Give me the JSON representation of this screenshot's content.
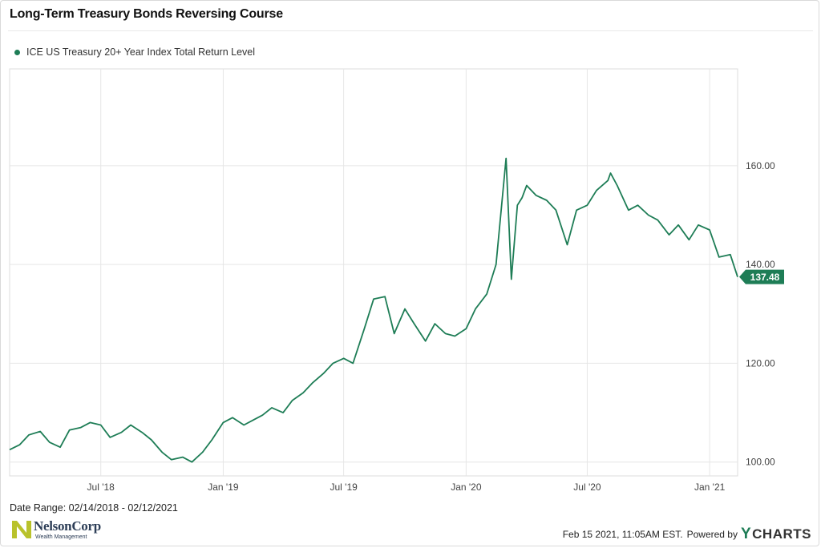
{
  "title": "Long-Term Treasury Bonds Reversing Course",
  "legend_label": "ICE US Treasury 20+ Year Index Total Return Level",
  "date_range": "Date Range: 02/14/2018 - 02/12/2021",
  "footer": {
    "timestamp": "Feb 15 2021, 11:05AM EST.",
    "powered_by": "Powered by",
    "brand_y": "Y",
    "brand_rest": "CHARTS"
  },
  "logo": {
    "name": "NelsonCorp",
    "sub": "Wealth Management",
    "mark_letter": "N"
  },
  "colors": {
    "line": "#1e7d56",
    "grid": "#e6e6e6",
    "badge": "#1e7d56",
    "logo_mark": "#b9c22b"
  },
  "chart_data": {
    "type": "line",
    "title": "Long-Term Treasury Bonds Reversing Course",
    "series": [
      {
        "name": "ICE US Treasury 20+ Year Index Total Return Level",
        "x": [
          "2018-02-14",
          "2018-03-01",
          "2018-03-15",
          "2018-04-01",
          "2018-04-15",
          "2018-05-01",
          "2018-05-15",
          "2018-06-01",
          "2018-06-15",
          "2018-07-01",
          "2018-07-15",
          "2018-08-01",
          "2018-08-15",
          "2018-09-01",
          "2018-09-15",
          "2018-10-01",
          "2018-10-15",
          "2018-11-01",
          "2018-11-15",
          "2018-12-01",
          "2018-12-15",
          "2019-01-01",
          "2019-01-15",
          "2019-02-01",
          "2019-02-15",
          "2019-03-01",
          "2019-03-15",
          "2019-04-01",
          "2019-04-15",
          "2019-05-01",
          "2019-05-15",
          "2019-06-01",
          "2019-06-15",
          "2019-07-01",
          "2019-07-15",
          "2019-08-01",
          "2019-08-15",
          "2019-09-01",
          "2019-09-15",
          "2019-10-01",
          "2019-10-15",
          "2019-11-01",
          "2019-11-15",
          "2019-12-01",
          "2019-12-15",
          "2020-01-01",
          "2020-01-15",
          "2020-02-01",
          "2020-02-15",
          "2020-03-01",
          "2020-03-09",
          "2020-03-18",
          "2020-03-25",
          "2020-04-01",
          "2020-04-15",
          "2020-05-01",
          "2020-05-15",
          "2020-06-01",
          "2020-06-15",
          "2020-07-01",
          "2020-07-15",
          "2020-08-01",
          "2020-08-05",
          "2020-08-15",
          "2020-09-01",
          "2020-09-15",
          "2020-10-01",
          "2020-10-15",
          "2020-11-01",
          "2020-11-15",
          "2020-12-01",
          "2020-12-15",
          "2021-01-01",
          "2021-01-15",
          "2021-02-01",
          "2021-02-12"
        ],
        "values": [
          102.5,
          103.5,
          105.5,
          106.2,
          104.0,
          103.0,
          106.5,
          107.0,
          108.0,
          107.5,
          105.0,
          106.0,
          107.5,
          106.0,
          104.5,
          102.0,
          100.5,
          101.0,
          100.0,
          102.0,
          104.5,
          108.0,
          109.0,
          107.5,
          108.5,
          109.5,
          111.0,
          110.0,
          112.5,
          114.0,
          116.0,
          118.0,
          120.0,
          121.0,
          120.0,
          127.0,
          133.0,
          133.5,
          126.0,
          131.0,
          128.0,
          124.5,
          128.0,
          126.0,
          125.5,
          127.0,
          131.0,
          134.0,
          140.0,
          161.5,
          137.0,
          152.0,
          153.5,
          156.0,
          154.0,
          153.0,
          151.0,
          144.0,
          151.0,
          152.0,
          155.0,
          157.0,
          158.5,
          156.0,
          151.0,
          152.0,
          150.0,
          149.0,
          146.0,
          148.0,
          145.0,
          148.0,
          147.0,
          141.5,
          142.0,
          137.48
        ]
      }
    ],
    "xlabel": "",
    "ylabel": "",
    "x_tick_labels": [
      "Jul '18",
      "Jan '19",
      "Jul '19",
      "Jan '20",
      "Jul '20",
      "Jan '21"
    ],
    "x_tick_dates": [
      "2018-07-01",
      "2019-01-01",
      "2019-07-01",
      "2020-01-01",
      "2020-07-01",
      "2021-01-01"
    ],
    "y_ticks": [
      100,
      120,
      140,
      160
    ],
    "y_tick_labels": [
      "100.00",
      "120.00",
      "140.00",
      "160.00"
    ],
    "xlim": [
      "2018-02-14",
      "2021-02-12"
    ],
    "ylim": [
      97.2,
      179.6
    ],
    "last_value_label": "137.48",
    "grid": true,
    "legend": "top-left"
  }
}
